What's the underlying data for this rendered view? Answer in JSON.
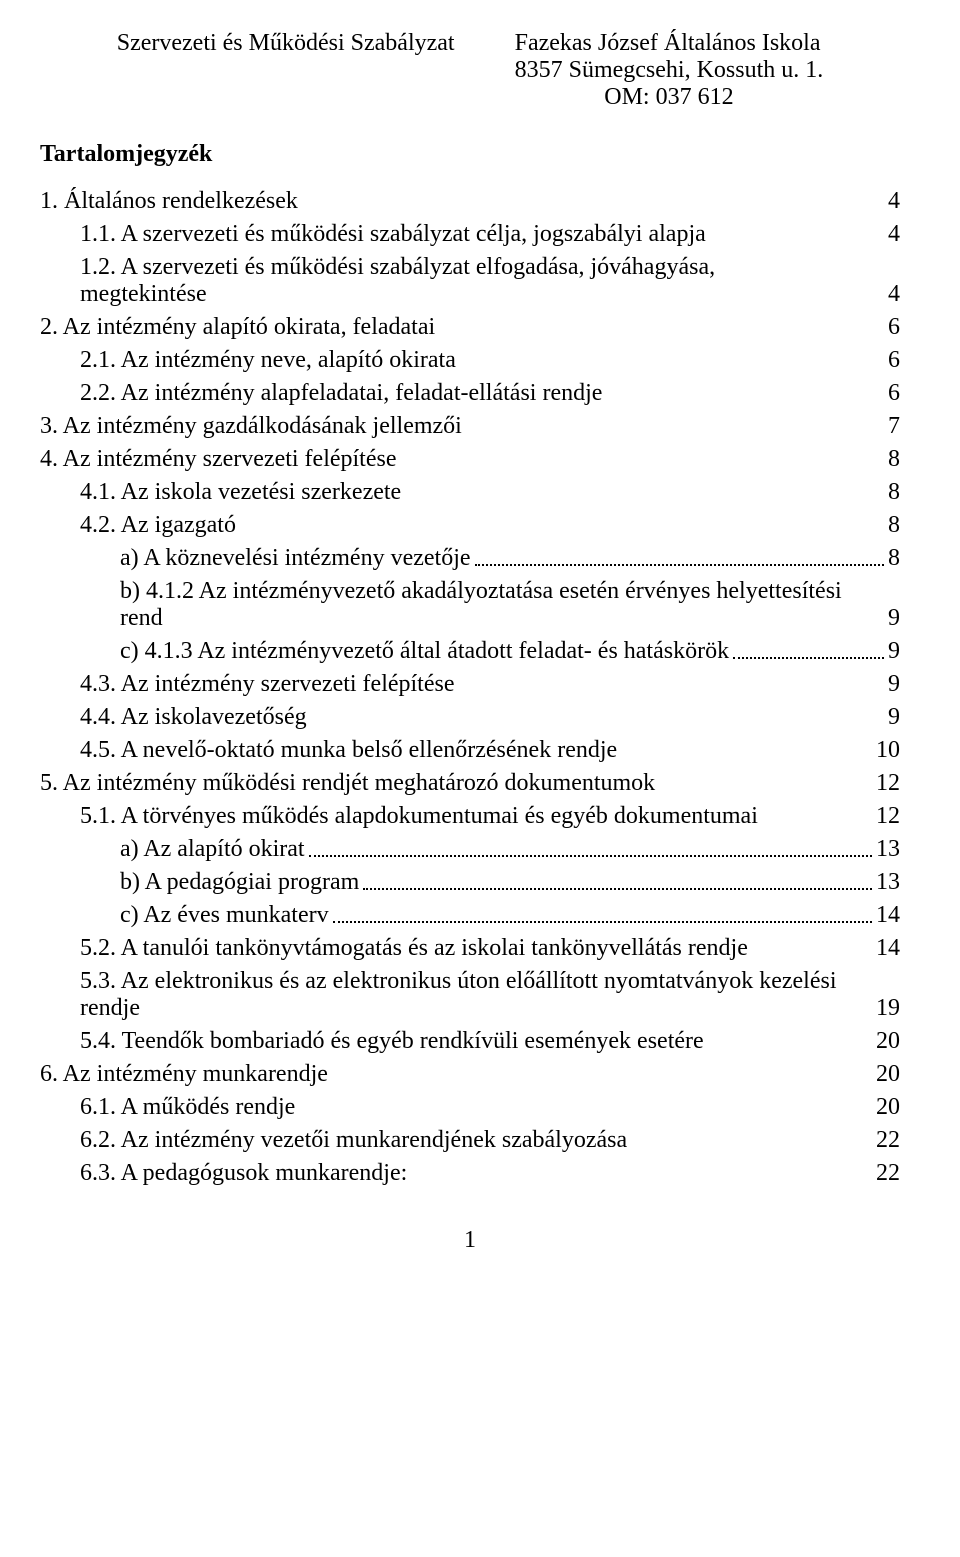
{
  "header": {
    "left": "Szervezeti és Működési Szabályzat",
    "right1": "Fazekas József Általános Iskola",
    "right2": "8357 Sümegcsehi, Kossuth u. 1.",
    "right3": "OM: 037 612"
  },
  "toc_title": "Tartalomjegyzék",
  "entries": [
    {
      "indent": 0,
      "label": "1.  Általános rendelkezések",
      "page": "4",
      "dots": false
    },
    {
      "indent": 1,
      "label": "1.1.  A szervezeti és működési szabályzat célja, jogszabályi alapja",
      "page": "4",
      "dots": false
    },
    {
      "indent": 1,
      "label": "1.2.  A szervezeti és működési szabályzat elfogadása, jóváhagyása, megtekintése",
      "page": "4",
      "dots": false,
      "multiline": true
    },
    {
      "indent": 0,
      "label": "2.  Az intézmény alapító okirata, feladatai",
      "page": "6",
      "dots": false
    },
    {
      "indent": 1,
      "label": "2.1.  Az intézmény neve, alapító okirata",
      "page": "6",
      "dots": false
    },
    {
      "indent": 1,
      "label": "2.2.  Az intézmény alapfeladatai, feladat-ellátási rendje",
      "page": "6",
      "dots": false
    },
    {
      "indent": 0,
      "label": "3.  Az intézmény gazdálkodásának jellemzői",
      "page": "7",
      "dots": false
    },
    {
      "indent": 0,
      "label": "4.  Az intézmény szervezeti felépítése",
      "page": "8",
      "dots": false
    },
    {
      "indent": 1,
      "label": "4.1.  Az iskola vezetési szerkezete",
      "page": "8",
      "dots": false
    },
    {
      "indent": 1,
      "label": "4.2.  Az igazgató",
      "page": "8",
      "dots": false
    },
    {
      "indent": 2,
      "label": "a)  A köznevelési intézmény vezetője",
      "page": "8",
      "dots": true
    },
    {
      "indent": 2,
      "label": "b)  4.1.2 Az intézményvezető akadályoztatása esetén érvényes helyettesítési rend",
      "page": "9",
      "dots": true,
      "multiline": true
    },
    {
      "indent": 2,
      "label": "c)  4.1.3 Az intézményvezető által átadott feladat- és hatáskörök",
      "page": "9",
      "dots": true
    },
    {
      "indent": 1,
      "label": "4.3.  Az intézmény szervezeti felépítése",
      "page": "9",
      "dots": false
    },
    {
      "indent": 1,
      "label": "4.4.  Az iskolavezetőség",
      "page": "9",
      "dots": false
    },
    {
      "indent": 1,
      "label": "4.5.  A nevelő-oktató munka belső ellenőrzésének rendje",
      "page": "10",
      "dots": false
    },
    {
      "indent": 0,
      "label": "5.  Az intézmény működési rendjét meghatározó dokumentumok",
      "page": "12",
      "dots": false
    },
    {
      "indent": 1,
      "label": "5.1.  A törvényes működés alapdokumentumai és egyéb dokumentumai",
      "page": "12",
      "dots": false
    },
    {
      "indent": 2,
      "label": "a)  Az alapító okirat",
      "page": "13",
      "dots": true
    },
    {
      "indent": 2,
      "label": "b)  A pedagógiai program",
      "page": "13",
      "dots": true
    },
    {
      "indent": 2,
      "label": "c)  Az éves munkaterv",
      "page": "14",
      "dots": true
    },
    {
      "indent": 1,
      "label": "5.2.  A tanulói tankönyvtámogatás és az iskolai tankönyvellátás rendje",
      "page": "14",
      "dots": false
    },
    {
      "indent": 1,
      "label": "5.3.  Az elektronikus és az elektronikus úton előállított nyomtatványok kezelési rendje",
      "page": "19",
      "dots": false,
      "multiline": true
    },
    {
      "indent": 1,
      "label": "5.4.  Teendők bombariadó és egyéb rendkívüli események esetére",
      "page": "20",
      "dots": false
    },
    {
      "indent": 0,
      "label": "6.  Az intézmény munkarendje",
      "page": "20",
      "dots": false
    },
    {
      "indent": 1,
      "label": "6.1.  A működés rendje",
      "page": "20",
      "dots": false
    },
    {
      "indent": 1,
      "label": "6.2.  Az intézmény vezetői munkarendjének szabályozása",
      "page": "22",
      "dots": false
    },
    {
      "indent": 1,
      "label": "6.3.  A pedagógusok munkarendje:",
      "page": "22",
      "dots": false
    }
  ],
  "footer": "1"
}
